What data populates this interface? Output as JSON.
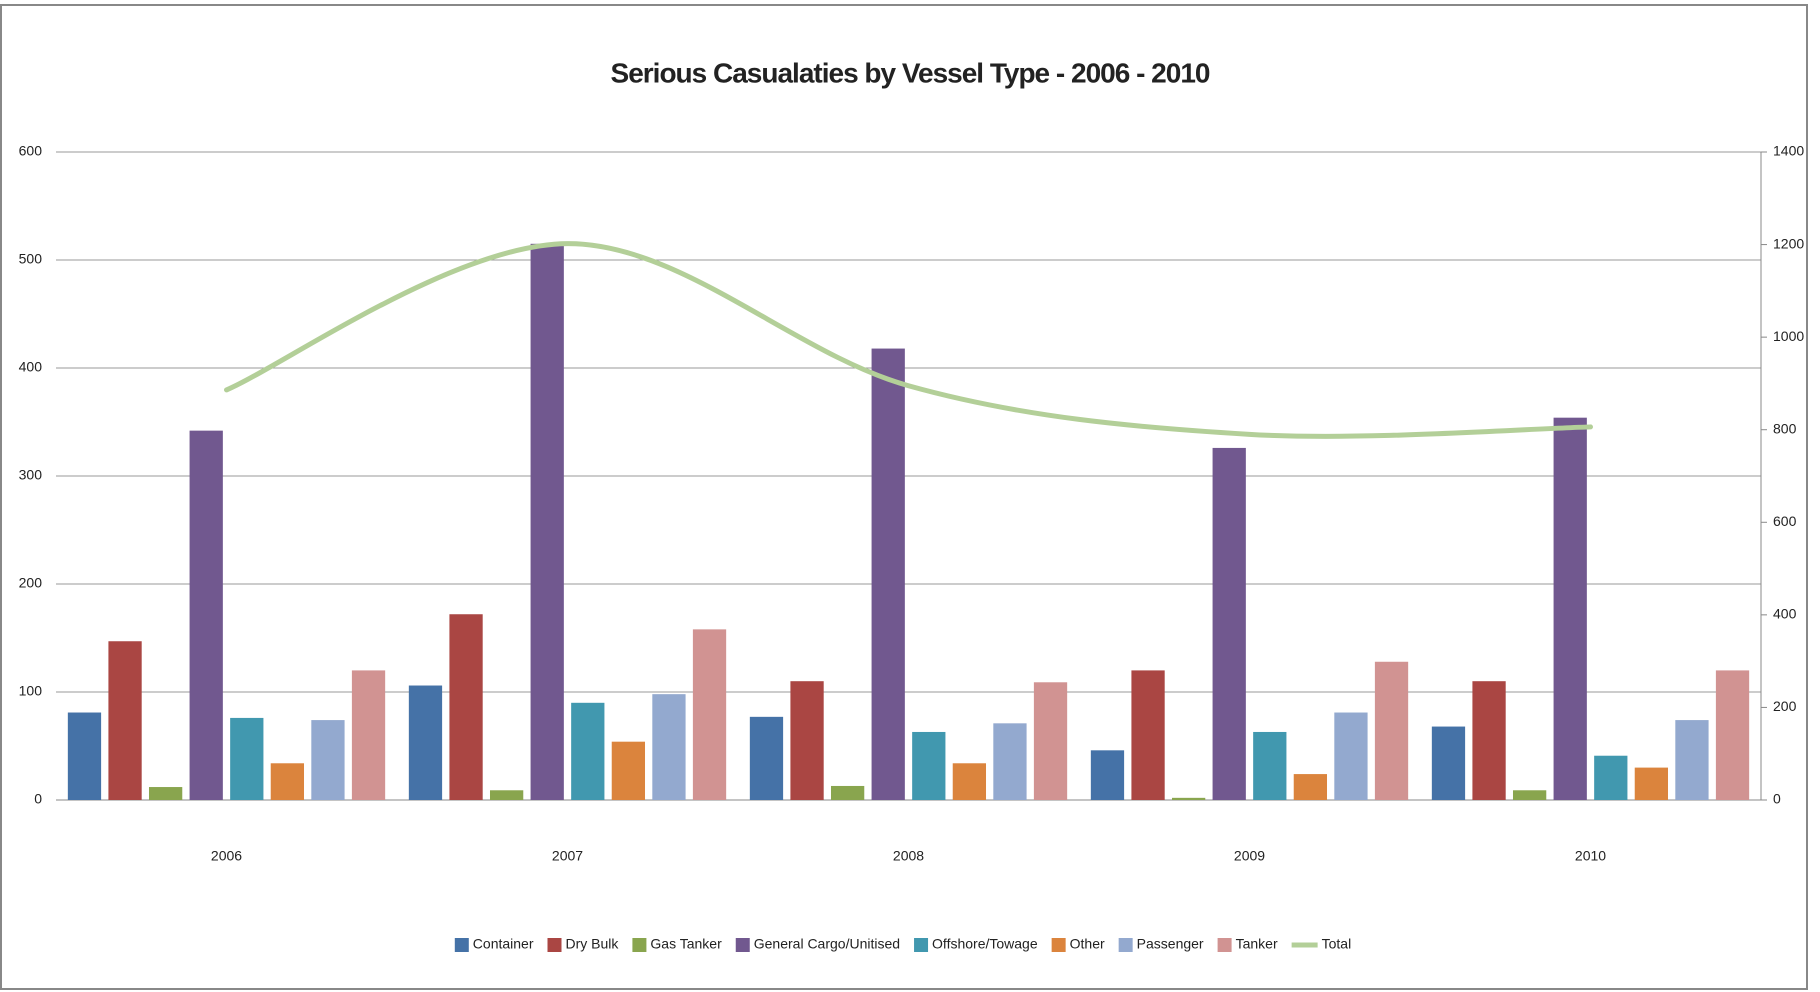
{
  "chart_data": {
    "type": "bar",
    "title": "Serious Casualaties by Vessel Type - 2006 - 2010",
    "categories": [
      "2006",
      "2007",
      "2008",
      "2009",
      "2010"
    ],
    "series": [
      {
        "name": "Container",
        "color": "#4572a7",
        "values": [
          81,
          106,
          77,
          46,
          68
        ]
      },
      {
        "name": "Dry Bulk",
        "color": "#aa4643",
        "values": [
          147,
          172,
          110,
          120,
          110
        ]
      },
      {
        "name": "Gas Tanker",
        "color": "#89a54e",
        "values": [
          12,
          9,
          13,
          2,
          9
        ]
      },
      {
        "name": "General Cargo/Unitised",
        "color": "#71588f",
        "values": [
          342,
          515,
          418,
          326,
          354
        ]
      },
      {
        "name": "Offshore/Towage",
        "color": "#4198af",
        "values": [
          76,
          90,
          63,
          63,
          41
        ]
      },
      {
        "name": "Other",
        "color": "#db843d",
        "values": [
          34,
          54,
          34,
          24,
          30
        ]
      },
      {
        "name": "Passenger",
        "color": "#93a9cf",
        "values": [
          74,
          98,
          71,
          81,
          74
        ]
      },
      {
        "name": "Tanker",
        "color": "#d19392",
        "values": [
          120,
          158,
          109,
          128,
          120
        ]
      },
      {
        "name": "Total",
        "color": "#b3cf98",
        "type": "line",
        "axis": "y2",
        "values": [
          886,
          1202,
          895,
          790,
          806
        ]
      }
    ],
    "ylim": [
      0,
      600
    ],
    "yticks": [
      0,
      100,
      200,
      300,
      400,
      500,
      600
    ],
    "y2lim": [
      0,
      1400
    ],
    "y2ticks": [
      0,
      200,
      400,
      600,
      800,
      1000,
      1200,
      1400
    ],
    "grid": true,
    "legend": "bottom"
  }
}
